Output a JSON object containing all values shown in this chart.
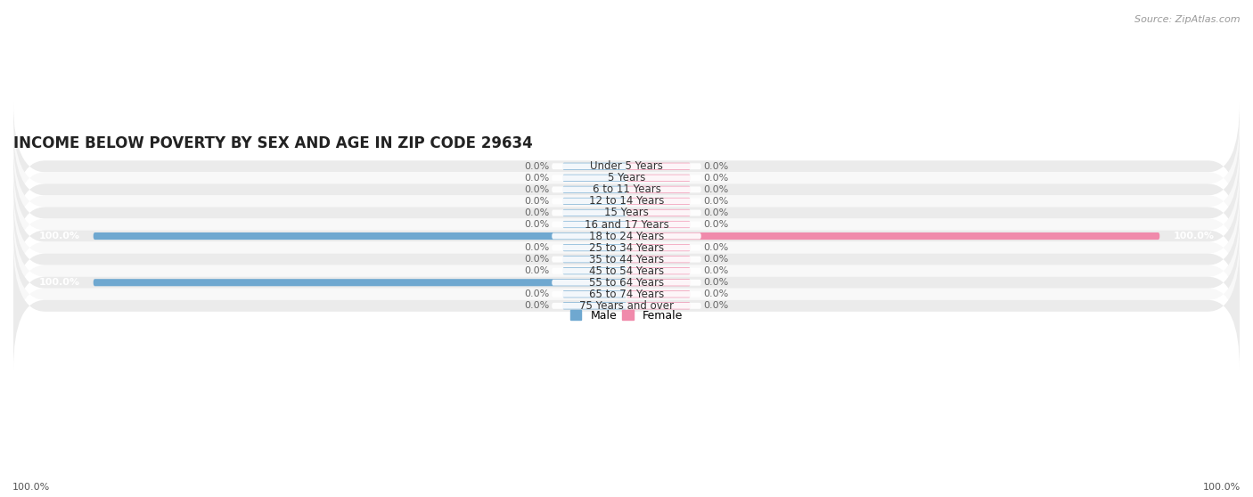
{
  "title": "INCOME BELOW POVERTY BY SEX AND AGE IN ZIP CODE 29634",
  "source": "Source: ZipAtlas.com",
  "categories": [
    "Under 5 Years",
    "5 Years",
    "6 to 11 Years",
    "12 to 14 Years",
    "15 Years",
    "16 and 17 Years",
    "18 to 24 Years",
    "25 to 34 Years",
    "35 to 44 Years",
    "45 to 54 Years",
    "55 to 64 Years",
    "65 to 74 Years",
    "75 Years and over"
  ],
  "male_values": [
    0.0,
    0.0,
    0.0,
    0.0,
    0.0,
    0.0,
    100.0,
    0.0,
    0.0,
    0.0,
    100.0,
    0.0,
    0.0
  ],
  "female_values": [
    0.0,
    0.0,
    0.0,
    0.0,
    0.0,
    0.0,
    100.0,
    0.0,
    0.0,
    0.0,
    0.0,
    0.0,
    0.0
  ],
  "male_color": "#6fa8d0",
  "female_color": "#f08aab",
  "male_label": "Male",
  "female_label": "Female",
  "background_color": "#ffffff",
  "row_even_color": "#ebebeb",
  "row_odd_color": "#f8f8f8",
  "label_bg_color": "#ffffff",
  "stub_size": 12.0,
  "full_size": 100.0,
  "bar_height": 0.62,
  "title_fontsize": 12,
  "source_fontsize": 8,
  "label_fontsize": 8.5,
  "value_fontsize": 8,
  "xlim_abs": 115
}
